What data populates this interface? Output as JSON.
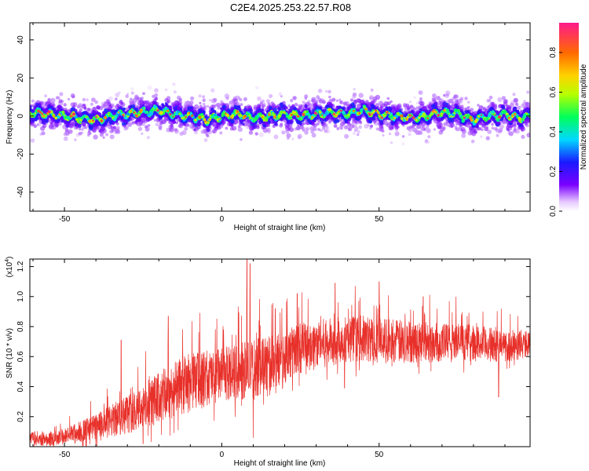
{
  "title": "C2E4.2025.253.22.57.R08",
  "chart_data": [
    {
      "type": "heatmap",
      "xlabel": "Height of straight line (km)",
      "ylabel": "Frequency (Hz)",
      "xlim": [
        -61,
        98
      ],
      "ylim": [
        -50,
        49
      ],
      "xticks": [
        -50,
        0,
        50
      ],
      "yticks": [
        -40,
        -20,
        0,
        20,
        40
      ],
      "ridge": {
        "description": "dominant frequency ridge vs height",
        "x": [
          -61,
          -55,
          -50,
          -45,
          -40,
          -35,
          -30,
          -25,
          -20,
          -15,
          -10,
          -5,
          0,
          5,
          10,
          15,
          20,
          25,
          30,
          35,
          40,
          45,
          50,
          55,
          60,
          65,
          70,
          75,
          80,
          85,
          90,
          95,
          98
        ],
        "y": [
          2,
          1,
          0,
          -1,
          -2,
          0,
          1,
          2,
          3,
          1,
          0,
          -2,
          0,
          1,
          -1,
          0,
          1,
          0,
          1,
          2,
          1,
          3,
          1,
          0,
          -1,
          0,
          2,
          1,
          -2,
          0,
          1,
          -1,
          0
        ]
      },
      "colorbar": {
        "label": "Normalized spectral amplitude",
        "ticks": [
          0.0,
          0.2,
          0.4,
          0.6,
          0.8
        ],
        "range": [
          0,
          0.95
        ]
      }
    },
    {
      "type": "line",
      "xlabel": "Height of straight line (km)",
      "ylabel": "SNR (10 * v/v)",
      "yscale_label": "(x10",
      "yscale_exp": "4",
      "yscale_close": ")",
      "xlim": [
        -61,
        98
      ],
      "ylim": [
        0,
        1.25
      ],
      "xticks": [
        -50,
        0,
        50
      ],
      "yticks": [
        0.2,
        0.4,
        0.6,
        0.8,
        1.0,
        1.2
      ],
      "ytick_labels": [
        "0.2",
        "0.4",
        "0.6",
        "0.8",
        "1.0",
        "1.2"
      ],
      "color": "#e8302a",
      "trend": {
        "x": [
          -61,
          -55,
          -50,
          -45,
          -40,
          -35,
          -30,
          -25,
          -20,
          -15,
          -10,
          -5,
          0,
          5,
          10,
          15,
          20,
          25,
          30,
          35,
          40,
          45,
          50,
          55,
          60,
          65,
          70,
          75,
          80,
          85,
          90,
          95,
          98
        ],
        "y": [
          0.06,
          0.05,
          0.07,
          0.1,
          0.13,
          0.17,
          0.22,
          0.27,
          0.32,
          0.38,
          0.43,
          0.45,
          0.48,
          0.5,
          0.52,
          0.55,
          0.6,
          0.66,
          0.68,
          0.7,
          0.72,
          0.72,
          0.71,
          0.7,
          0.7,
          0.7,
          0.69,
          0.7,
          0.69,
          0.68,
          0.67,
          0.68,
          0.68
        ]
      },
      "noise": {
        "x": [
          -61,
          -50,
          -40,
          -30,
          -20,
          -10,
          0,
          10,
          20,
          30,
          40,
          50,
          60,
          70,
          80,
          90,
          98
        ],
        "y": [
          0.04,
          0.05,
          0.08,
          0.12,
          0.16,
          0.18,
          0.16,
          0.18,
          0.16,
          0.15,
          0.14,
          0.14,
          0.13,
          0.12,
          0.11,
          0.1,
          0.08
        ]
      },
      "peaks": [
        {
          "x": -32,
          "y": 0.71
        },
        {
          "x": -17,
          "y": 0.87
        },
        {
          "x": 8,
          "y": 1.25
        },
        {
          "x": 9,
          "y": 1.22
        },
        {
          "x": 17,
          "y": 0.92
        },
        {
          "x": 24,
          "y": 1.02
        },
        {
          "x": 36,
          "y": 1.09
        },
        {
          "x": 39,
          "y": 1.22
        },
        {
          "x": 50,
          "y": 1.1
        },
        {
          "x": 64,
          "y": 1.0
        }
      ],
      "dips": [
        {
          "x": -25,
          "y": 0.02
        },
        {
          "x": 10,
          "y": 0.06
        },
        {
          "x": 39,
          "y": 0.39
        },
        {
          "x": 88,
          "y": 0.33
        }
      ]
    }
  ]
}
